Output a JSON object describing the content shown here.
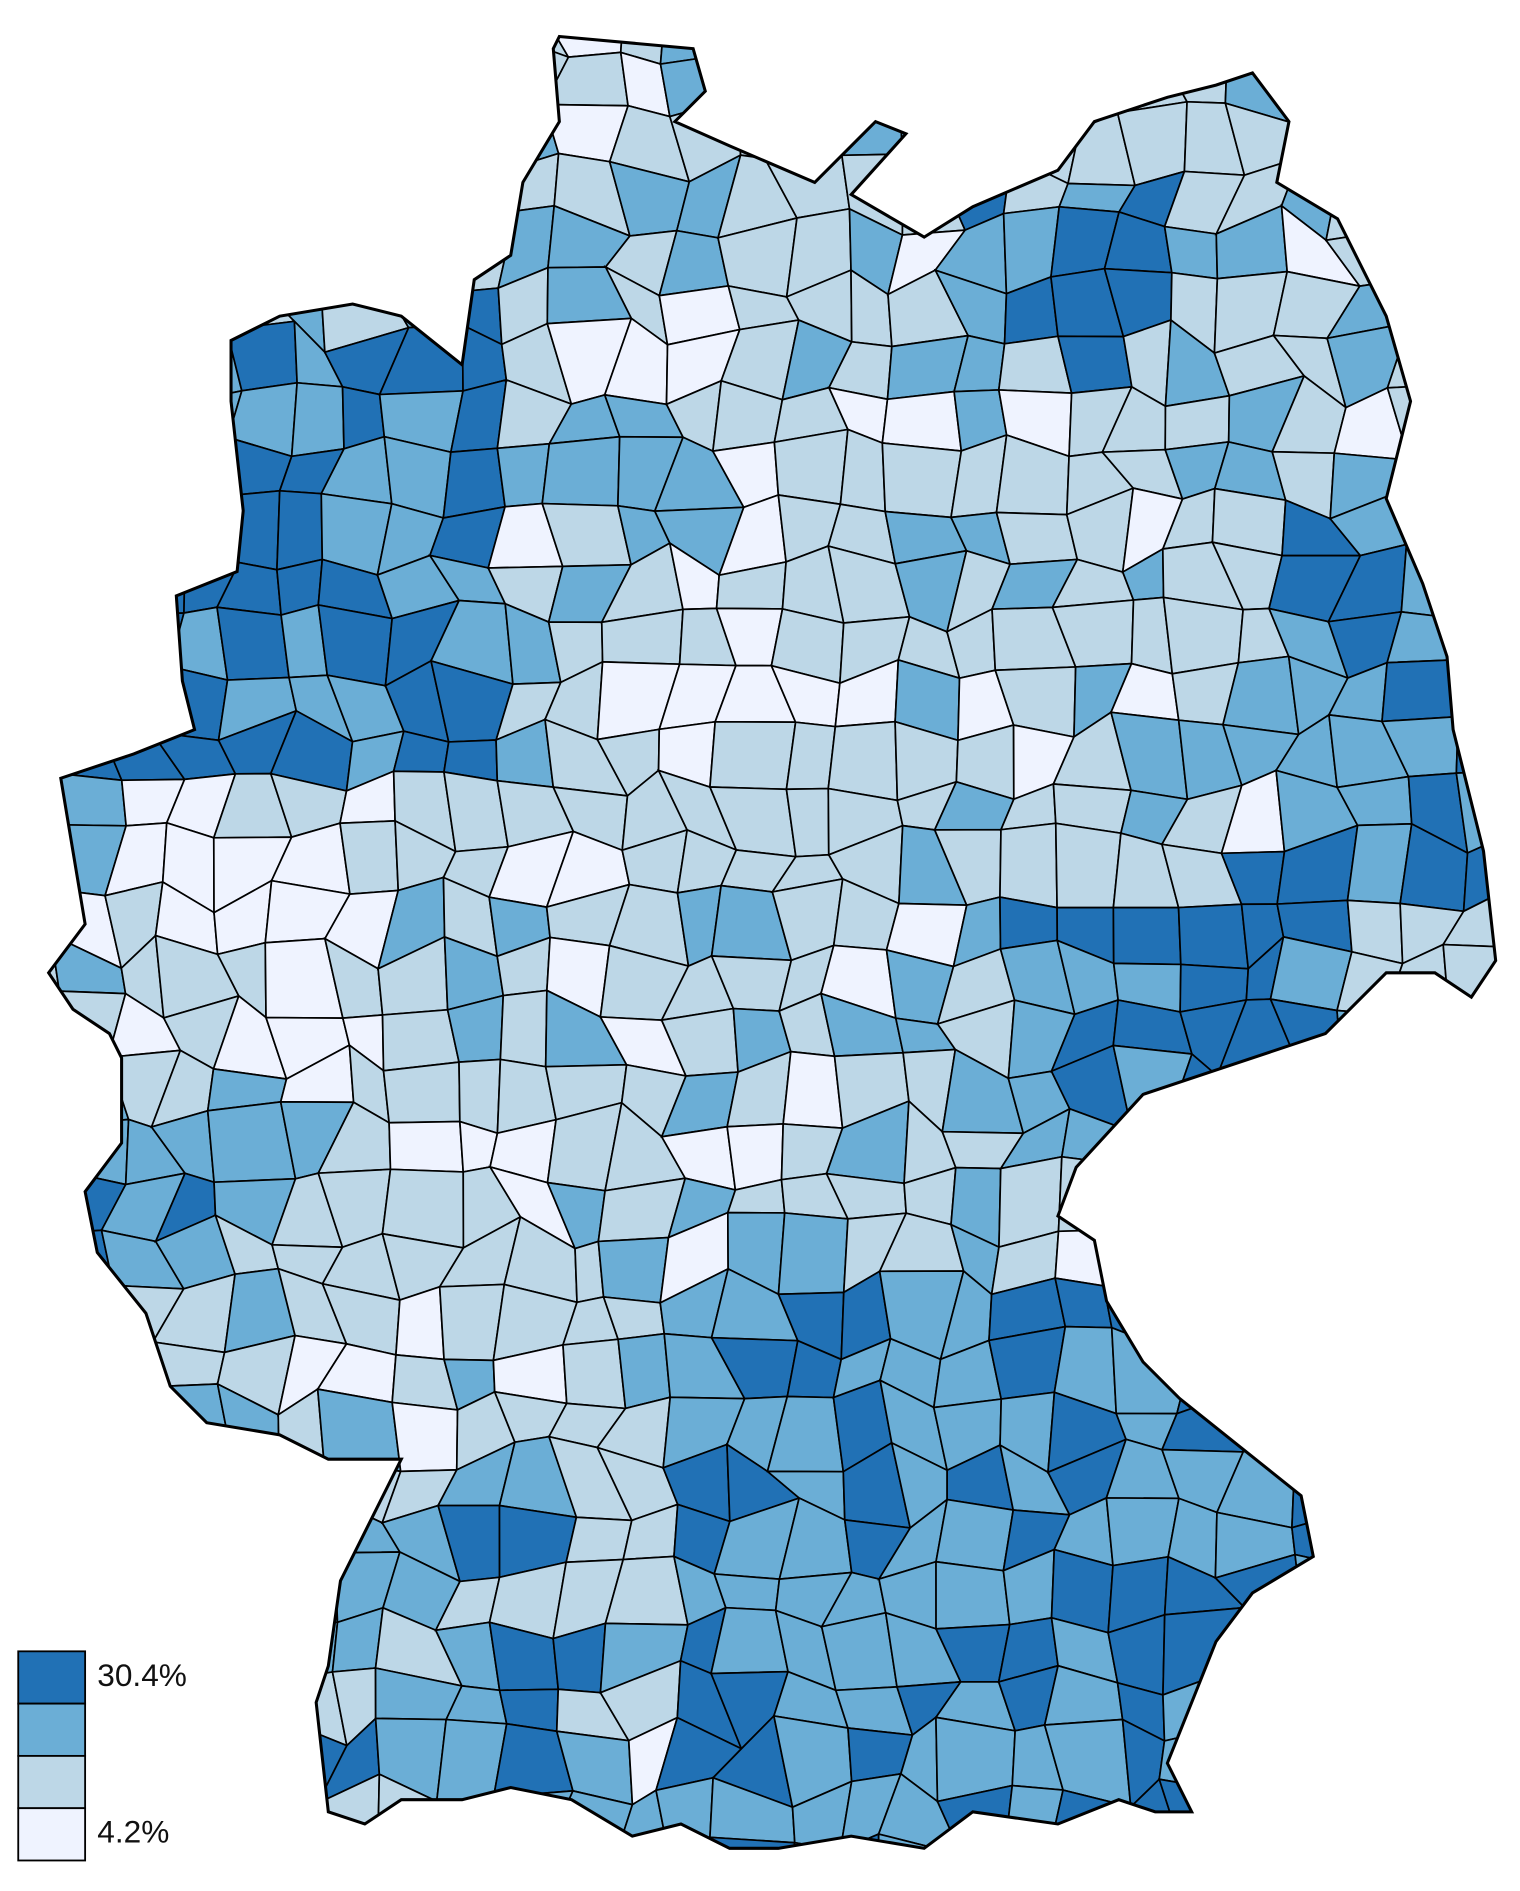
{
  "legend": {
    "classes": [
      {
        "color": "#2171b5",
        "label": "30.4%"
      },
      {
        "color": "#6baed6"
      },
      {
        "color": "#bdd7e7"
      },
      {
        "color": "#eff3ff",
        "label": "4.2%"
      }
    ]
  }
}
